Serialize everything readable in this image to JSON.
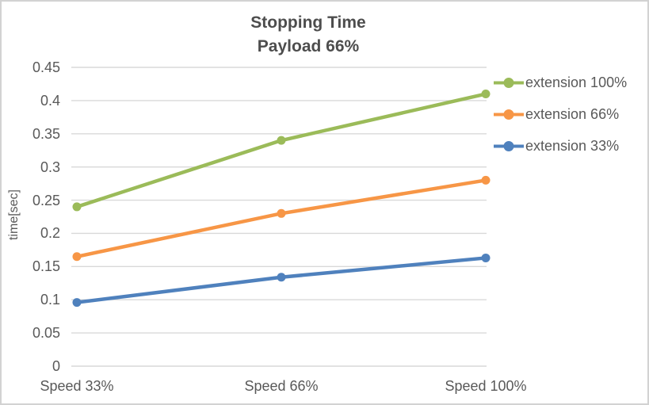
{
  "window": {
    "background_color": "#ffffff",
    "border_color": "#d2d2d2"
  },
  "chart_data": {
    "type": "line",
    "title": "Stopping Time",
    "subtitle": "Payload 66%",
    "ylabel": "time[sec]",
    "xlabel": "",
    "categories": [
      "Speed 33%",
      "Speed 66%",
      "Speed 100%"
    ],
    "series": [
      {
        "name": "extension 100%",
        "color": "#9BBB59",
        "values": [
          0.24,
          0.34,
          0.41
        ]
      },
      {
        "name": "extension 66%",
        "color": "#F79646",
        "values": [
          0.165,
          0.23,
          0.28
        ]
      },
      {
        "name": "extension 33%",
        "color": "#4F81BD",
        "values": [
          0.096,
          0.134,
          0.163
        ]
      }
    ],
    "ylim": [
      0,
      0.45
    ],
    "ytick_step": 0.05,
    "ytick_labels": [
      "0.45",
      "0.4",
      "0.35",
      "0.3",
      "0.25",
      "0.2",
      "0.15",
      "0.1",
      "0.05",
      "0"
    ],
    "grid": true,
    "gridline_color": "#D9D9D9",
    "legend_position": "right",
    "marker": "circle",
    "title_color": "#4D4D4D",
    "text_color": "#595959"
  }
}
